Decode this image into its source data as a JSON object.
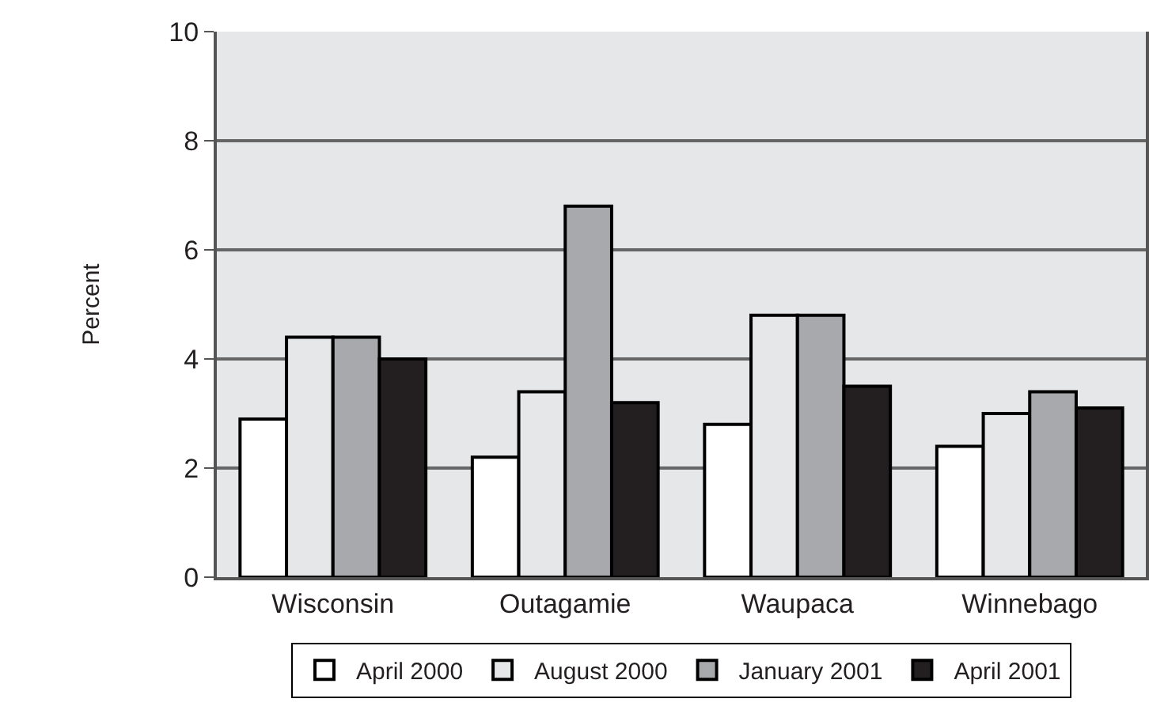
{
  "chart_data": {
    "type": "bar",
    "ylabel": "Percent",
    "categories": [
      "Wisconsin",
      "Outagamie",
      "Waupaca",
      "Winnebago"
    ],
    "series": [
      {
        "name": "April 2000",
        "color": "#ffffff",
        "values": [
          2.9,
          2.2,
          2.8,
          2.4
        ]
      },
      {
        "name": "August 2000",
        "color": "#e6e7e9",
        "values": [
          4.4,
          3.4,
          4.8,
          3.0
        ]
      },
      {
        "name": "January 2001",
        "color": "#a7a9ac",
        "values": [
          4.4,
          6.8,
          4.8,
          3.4
        ]
      },
      {
        "name": "April 2001",
        "color": "#231f20",
        "values": [
          4.0,
          3.2,
          3.5,
          3.1
        ]
      }
    ],
    "ylim": [
      0,
      10
    ],
    "yticks": [
      0,
      2,
      4,
      6,
      8,
      10
    ],
    "grid": "y",
    "legend": "bottom"
  }
}
